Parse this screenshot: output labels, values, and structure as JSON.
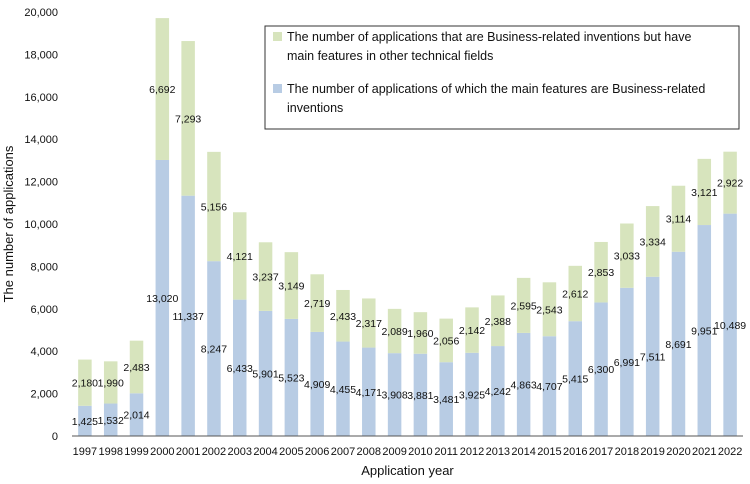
{
  "chart_data": {
    "type": "bar",
    "stacked": true,
    "xlabel": "Application year",
    "ylabel": "The number of applications",
    "ylim": [
      0,
      20000
    ],
    "yticks": [
      0,
      2000,
      4000,
      6000,
      8000,
      10000,
      12000,
      14000,
      16000,
      18000,
      20000
    ],
    "ytick_labels": [
      "0",
      "2,000",
      "4,000",
      "6,000",
      "8,000",
      "10,000",
      "12,000",
      "14,000",
      "16,000",
      "18,000",
      "20,000"
    ],
    "categories": [
      "1997",
      "1998",
      "1999",
      "2000",
      "2001",
      "2002",
      "2003",
      "2004",
      "2005",
      "2006",
      "2007",
      "2008",
      "2009",
      "2010",
      "2011",
      "2012",
      "2013",
      "2014",
      "2015",
      "2016",
      "2017",
      "2018",
      "2019",
      "2020",
      "2021",
      "2022"
    ],
    "series": [
      {
        "name": "The number of applications of which the main features are Business-related inventions",
        "color": "#b8cce4",
        "values": [
          1425,
          1532,
          2014,
          13020,
          11337,
          8247,
          6433,
          5901,
          5523,
          4909,
          4455,
          4171,
          3908,
          3881,
          3481,
          3925,
          4242,
          4863,
          4707,
          5415,
          6300,
          6991,
          7511,
          8691,
          9951,
          10489
        ],
        "labels": [
          "1,425",
          "1,532",
          "2,014",
          "13,020",
          "11,337",
          "8,247",
          "6,433",
          "5,901",
          "5,523",
          "4,909",
          "4,455",
          "4,171",
          "3,908",
          "3,881",
          "3,481",
          "3,925",
          "4,242",
          "4,863",
          "4,707",
          "5,415",
          "6,300",
          "6,991",
          "7,511",
          "8,691",
          "9,951",
          "10,489"
        ]
      },
      {
        "name": "The number of applications that are Business-related inventions but have main features in other technical fields",
        "color": "#d7e4bd",
        "values": [
          2180,
          1990,
          2483,
          6692,
          7293,
          5156,
          4121,
          3237,
          3149,
          2719,
          2433,
          2317,
          2089,
          1960,
          2056,
          2142,
          2388,
          2595,
          2543,
          2612,
          2853,
          3033,
          3334,
          3114,
          3121,
          2922
        ],
        "labels": [
          "2,180",
          "1,990",
          "2,483",
          "6,692",
          "7,293",
          "5,156",
          "4,121",
          "3,237",
          "3,149",
          "2,719",
          "2,433",
          "2,317",
          "2,089",
          "1,960",
          "2,056",
          "2,142",
          "2,388",
          "2,595",
          "2,543",
          "2,612",
          "2,853",
          "3,033",
          "3,334",
          "3,114",
          "3,121",
          "2,922"
        ]
      }
    ],
    "legend": {
      "placement": "top-right",
      "entries": [
        {
          "series": 1,
          "lines": [
            "The number of applications that are Business-related inventions but have",
            "main features in other technical fields"
          ]
        },
        {
          "series": 0,
          "lines": [
            "The number of applications of which the main features are Business-related",
            "inventions"
          ]
        }
      ]
    },
    "grid": false
  }
}
